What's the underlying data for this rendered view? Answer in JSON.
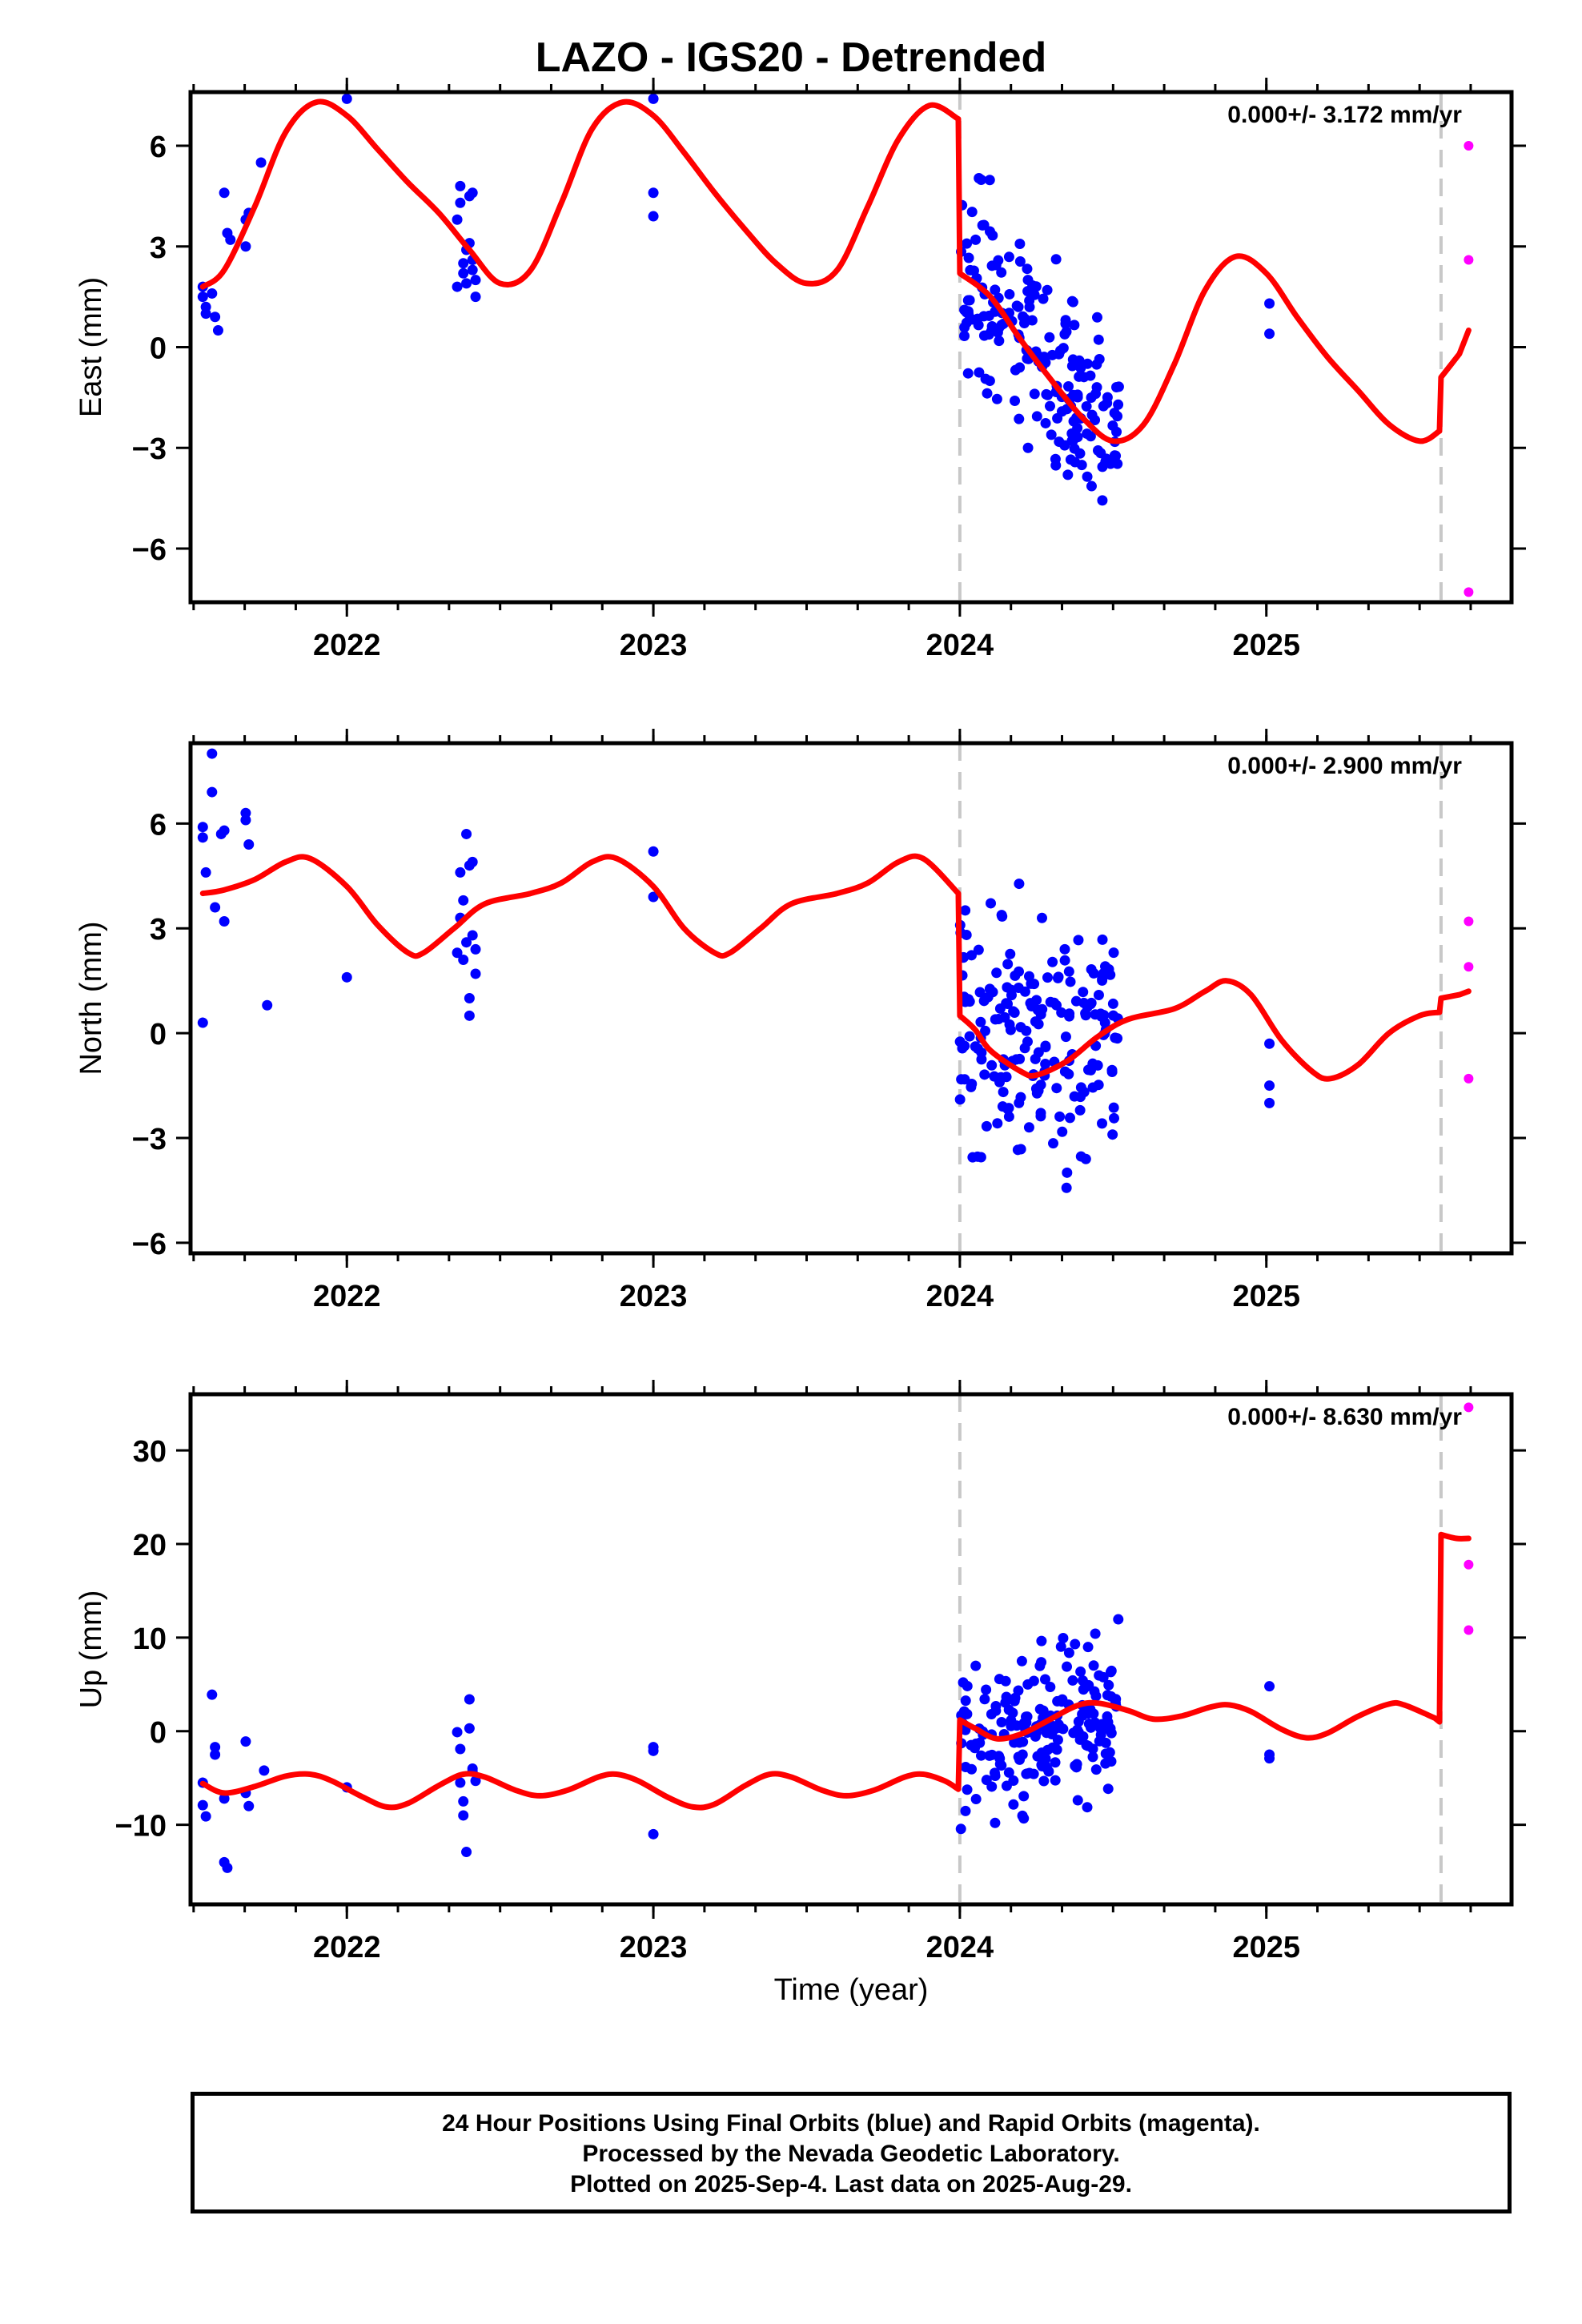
{
  "title": "LAZO - IGS20 - Detrended",
  "xlabel": "Time (year)",
  "footer": [
    "24 Hour Positions Using Final Orbits (blue) and Rapid Orbits (magenta).",
    "Processed by the Nevada Geodetic Laboratory.",
    "Plotted on 2025-Sep-4. Last data on 2025-Aug-29."
  ],
  "colors": {
    "final": "#0000ff",
    "rapid": "#ff00ff",
    "model": "#ff0000",
    "steps": "#c8c8c8"
  },
  "chart_data": [
    {
      "type": "scatter",
      "ylabel": "East (mm)",
      "rate": "0.000+/- 3.172 mm/yr",
      "xlim": [
        2021.49,
        2025.8
      ],
      "ylim": [
        -7.6,
        7.6
      ],
      "xticks": [
        2022,
        2023,
        2024,
        2025
      ],
      "yticks": [
        -6,
        -3,
        0,
        3,
        6
      ],
      "steps": [
        2024.0,
        2025.57
      ],
      "final": [
        [
          2021.53,
          1.8
        ],
        [
          2021.53,
          1.5
        ],
        [
          2021.54,
          1.2
        ],
        [
          2021.54,
          1.0
        ],
        [
          2021.56,
          1.6
        ],
        [
          2021.57,
          0.9
        ],
        [
          2021.58,
          0.5
        ],
        [
          2021.6,
          4.6
        ],
        [
          2021.61,
          3.4
        ],
        [
          2021.62,
          3.2
        ],
        [
          2021.67,
          3.0
        ],
        [
          2021.67,
          3.8
        ],
        [
          2021.68,
          4.0
        ],
        [
          2021.72,
          5.5
        ],
        [
          2022.0,
          7.4
        ],
        [
          2022.36,
          1.8
        ],
        [
          2022.36,
          3.8
        ],
        [
          2022.37,
          4.8
        ],
        [
          2022.37,
          4.3
        ],
        [
          2022.38,
          2.5
        ],
        [
          2022.38,
          2.2
        ],
        [
          2022.39,
          1.9
        ],
        [
          2022.39,
          2.9
        ],
        [
          2022.4,
          4.5
        ],
        [
          2022.4,
          3.1
        ],
        [
          2022.41,
          2.6
        ],
        [
          2022.41,
          2.3
        ],
        [
          2022.41,
          4.6
        ],
        [
          2022.42,
          1.5
        ],
        [
          2022.42,
          2.0
        ],
        [
          2023.0,
          7.4
        ],
        [
          2023.0,
          4.6
        ],
        [
          2023.0,
          3.9
        ],
        [
          2025.01,
          1.3
        ],
        [
          2025.01,
          0.4
        ]
      ],
      "rapid": [
        [
          2025.66,
          6.0
        ],
        [
          2025.66,
          2.6
        ],
        [
          2025.66,
          -7.3
        ]
      ],
      "final_cluster": {
        "x_start": 2024.0,
        "x_end": 2024.52,
        "count": 195,
        "trend_start": 2.6,
        "trend_end": -3.0,
        "spread": 1.6
      },
      "model": [
        [
          2021.53,
          1.8
        ],
        [
          2021.6,
          2.3
        ],
        [
          2021.7,
          4.2
        ],
        [
          2021.8,
          6.4
        ],
        [
          2021.9,
          7.3
        ],
        [
          2022.0,
          6.9
        ],
        [
          2022.1,
          5.9
        ],
        [
          2022.2,
          4.9
        ],
        [
          2022.3,
          4.0
        ],
        [
          2022.4,
          2.9
        ],
        [
          2022.5,
          1.9
        ],
        [
          2022.6,
          2.3
        ],
        [
          2022.7,
          4.3
        ],
        [
          2022.8,
          6.5
        ],
        [
          2022.9,
          7.3
        ],
        [
          2023.0,
          6.9
        ],
        [
          2023.1,
          5.8
        ],
        [
          2023.2,
          4.6
        ],
        [
          2023.3,
          3.5
        ],
        [
          2023.4,
          2.5
        ],
        [
          2023.5,
          1.9
        ],
        [
          2023.6,
          2.3
        ],
        [
          2023.7,
          4.2
        ],
        [
          2023.8,
          6.2
        ],
        [
          2023.9,
          7.2
        ],
        [
          2023.995,
          6.8
        ],
        [
          2024.0,
          2.2
        ],
        [
          2024.1,
          1.5
        ],
        [
          2024.2,
          0.2
        ],
        [
          2024.3,
          -1.0
        ],
        [
          2024.4,
          -2.1
        ],
        [
          2024.5,
          -2.8
        ],
        [
          2024.6,
          -2.3
        ],
        [
          2024.7,
          -0.5
        ],
        [
          2024.8,
          1.7
        ],
        [
          2024.9,
          2.7
        ],
        [
          2025.0,
          2.2
        ],
        [
          2025.1,
          0.9
        ],
        [
          2025.2,
          -0.3
        ],
        [
          2025.3,
          -1.3
        ],
        [
          2025.4,
          -2.3
        ],
        [
          2025.5,
          -2.8
        ],
        [
          2025.565,
          -2.5
        ],
        [
          2025.57,
          -0.9
        ],
        [
          2025.63,
          -0.2
        ],
        [
          2025.66,
          0.5
        ]
      ]
    },
    {
      "type": "scatter",
      "ylabel": "North (mm)",
      "rate": "0.000+/- 2.900 mm/yr",
      "xlim": [
        2021.49,
        2025.8
      ],
      "ylim": [
        -6.3,
        8.3
      ],
      "xticks": [
        2022,
        2023,
        2024,
        2025
      ],
      "yticks": [
        -6,
        -3,
        0,
        3,
        6
      ],
      "steps": [
        2024.0,
        2025.57
      ],
      "final": [
        [
          2021.53,
          0.3
        ],
        [
          2021.53,
          5.9
        ],
        [
          2021.53,
          5.6
        ],
        [
          2021.54,
          4.6
        ],
        [
          2021.56,
          8.0
        ],
        [
          2021.56,
          6.9
        ],
        [
          2021.57,
          3.6
        ],
        [
          2021.59,
          5.7
        ],
        [
          2021.6,
          5.8
        ],
        [
          2021.6,
          3.2
        ],
        [
          2021.67,
          6.3
        ],
        [
          2021.67,
          6.1
        ],
        [
          2021.68,
          5.4
        ],
        [
          2021.74,
          0.8
        ],
        [
          2022.0,
          1.6
        ],
        [
          2022.36,
          2.3
        ],
        [
          2022.37,
          3.3
        ],
        [
          2022.37,
          4.6
        ],
        [
          2022.38,
          2.1
        ],
        [
          2022.38,
          3.8
        ],
        [
          2022.39,
          2.6
        ],
        [
          2022.39,
          5.7
        ],
        [
          2022.4,
          1.0
        ],
        [
          2022.4,
          0.5
        ],
        [
          2022.4,
          4.8
        ],
        [
          2022.41,
          4.9
        ],
        [
          2022.41,
          2.8
        ],
        [
          2022.42,
          1.7
        ],
        [
          2022.42,
          2.4
        ],
        [
          2023.0,
          5.2
        ],
        [
          2023.0,
          3.9
        ],
        [
          2025.01,
          -0.3
        ],
        [
          2025.01,
          -1.5
        ],
        [
          2025.01,
          -2.0
        ]
      ],
      "rapid": [
        [
          2025.66,
          3.2
        ],
        [
          2025.66,
          1.9
        ],
        [
          2025.66,
          -1.3
        ]
      ],
      "final_cluster": {
        "x_start": 2024.0,
        "x_end": 2024.52,
        "count": 195,
        "trend_start": 0.0,
        "trend_end": 0.0,
        "spread": 1.9
      },
      "model": [
        [
          2021.53,
          4.0
        ],
        [
          2021.6,
          4.1
        ],
        [
          2021.7,
          4.4
        ],
        [
          2021.8,
          4.9
        ],
        [
          2021.88,
          5.0
        ],
        [
          2022.0,
          4.2
        ],
        [
          2022.1,
          3.1
        ],
        [
          2022.2,
          2.3
        ],
        [
          2022.25,
          2.3
        ],
        [
          2022.35,
          3.0
        ],
        [
          2022.45,
          3.7
        ],
        [
          2022.6,
          4.0
        ],
        [
          2022.7,
          4.3
        ],
        [
          2022.8,
          4.9
        ],
        [
          2022.88,
          5.0
        ],
        [
          2023.0,
          4.2
        ],
        [
          2023.1,
          3.0
        ],
        [
          2023.2,
          2.3
        ],
        [
          2023.25,
          2.3
        ],
        [
          2023.35,
          3.0
        ],
        [
          2023.45,
          3.7
        ],
        [
          2023.6,
          4.0
        ],
        [
          2023.7,
          4.3
        ],
        [
          2023.8,
          4.9
        ],
        [
          2023.88,
          5.0
        ],
        [
          2023.995,
          4.0
        ],
        [
          2024.0,
          0.5
        ],
        [
          2024.05,
          0.1
        ],
        [
          2024.1,
          -0.5
        ],
        [
          2024.2,
          -1.1
        ],
        [
          2024.25,
          -1.2
        ],
        [
          2024.35,
          -0.8
        ],
        [
          2024.45,
          -0.1
        ],
        [
          2024.55,
          0.4
        ],
        [
          2024.7,
          0.7
        ],
        [
          2024.8,
          1.2
        ],
        [
          2024.87,
          1.5
        ],
        [
          2024.95,
          1.1
        ],
        [
          2025.05,
          -0.2
        ],
        [
          2025.15,
          -1.1
        ],
        [
          2025.21,
          -1.3
        ],
        [
          2025.3,
          -0.9
        ],
        [
          2025.4,
          0.0
        ],
        [
          2025.5,
          0.5
        ],
        [
          2025.565,
          0.6
        ],
        [
          2025.57,
          1.0
        ],
        [
          2025.63,
          1.1
        ],
        [
          2025.66,
          1.2
        ]
      ]
    },
    {
      "type": "scatter",
      "ylabel": "Up (mm)",
      "rate": "0.000+/- 8.630 mm/yr",
      "xlim": [
        2021.49,
        2025.8
      ],
      "ylim": [
        -18.5,
        36
      ],
      "xticks": [
        2022,
        2023,
        2024,
        2025
      ],
      "yticks": [
        -10,
        0,
        10,
        20,
        30
      ],
      "steps": [
        2024.0,
        2025.57
      ],
      "final": [
        [
          2021.53,
          -5.5
        ],
        [
          2021.53,
          -7.9
        ],
        [
          2021.54,
          -9.1
        ],
        [
          2021.56,
          3.9
        ],
        [
          2021.57,
          -1.7
        ],
        [
          2021.57,
          -2.5
        ],
        [
          2021.6,
          -7.2
        ],
        [
          2021.6,
          -14.0
        ],
        [
          2021.61,
          -14.6
        ],
        [
          2021.67,
          -1.1
        ],
        [
          2021.67,
          -6.6
        ],
        [
          2021.68,
          -8.0
        ],
        [
          2021.73,
          -4.2
        ],
        [
          2022.0,
          -6.0
        ],
        [
          2022.36,
          -0.1
        ],
        [
          2022.37,
          -1.9
        ],
        [
          2022.37,
          -5.5
        ],
        [
          2022.38,
          -7.5
        ],
        [
          2022.38,
          -9.0
        ],
        [
          2022.39,
          -12.9
        ],
        [
          2022.4,
          0.3
        ],
        [
          2022.4,
          3.4
        ],
        [
          2022.41,
          -4.0
        ],
        [
          2022.41,
          -4.3
        ],
        [
          2022.42,
          -5.3
        ],
        [
          2023.0,
          -1.7
        ],
        [
          2023.0,
          -2.1
        ],
        [
          2023.0,
          -11.0
        ],
        [
          2025.01,
          4.8
        ],
        [
          2025.01,
          -2.5
        ],
        [
          2025.01,
          -2.9
        ]
      ],
      "rapid": [
        [
          2025.66,
          34.6
        ],
        [
          2025.66,
          17.8
        ],
        [
          2025.66,
          10.8
        ]
      ],
      "final_cluster": {
        "x_start": 2024.0,
        "x_end": 2024.52,
        "count": 195,
        "trend_start": -2.0,
        "trend_end": 3.0,
        "spread": 4.6
      },
      "model": [
        [
          2021.53,
          -5.6
        ],
        [
          2021.6,
          -6.6
        ],
        [
          2021.7,
          -5.9
        ],
        [
          2021.8,
          -4.8
        ],
        [
          2021.88,
          -4.6
        ],
        [
          2021.95,
          -5.3
        ],
        [
          2022.05,
          -7.0
        ],
        [
          2022.13,
          -8.1
        ],
        [
          2022.2,
          -7.7
        ],
        [
          2022.3,
          -5.8
        ],
        [
          2022.38,
          -4.6
        ],
        [
          2022.45,
          -4.9
        ],
        [
          2022.55,
          -6.3
        ],
        [
          2022.63,
          -6.9
        ],
        [
          2022.72,
          -6.3
        ],
        [
          2022.82,
          -4.9
        ],
        [
          2022.88,
          -4.6
        ],
        [
          2022.95,
          -5.3
        ],
        [
          2023.05,
          -7.1
        ],
        [
          2023.13,
          -8.1
        ],
        [
          2023.2,
          -7.8
        ],
        [
          2023.3,
          -5.8
        ],
        [
          2023.38,
          -4.6
        ],
        [
          2023.45,
          -4.9
        ],
        [
          2023.55,
          -6.3
        ],
        [
          2023.63,
          -6.9
        ],
        [
          2023.72,
          -6.3
        ],
        [
          2023.82,
          -4.9
        ],
        [
          2023.88,
          -4.6
        ],
        [
          2023.95,
          -5.3
        ],
        [
          2023.995,
          -6.2
        ],
        [
          2024.0,
          1.2
        ],
        [
          2024.05,
          0.3
        ],
        [
          2024.12,
          -0.8
        ],
        [
          2024.2,
          -0.3
        ],
        [
          2024.28,
          1.0
        ],
        [
          2024.38,
          2.7
        ],
        [
          2024.45,
          3.0
        ],
        [
          2024.55,
          2.2
        ],
        [
          2024.63,
          1.3
        ],
        [
          2024.72,
          1.6
        ],
        [
          2024.82,
          2.6
        ],
        [
          2024.88,
          2.8
        ],
        [
          2024.95,
          2.1
        ],
        [
          2025.05,
          0.2
        ],
        [
          2025.13,
          -0.7
        ],
        [
          2025.2,
          -0.2
        ],
        [
          2025.3,
          1.6
        ],
        [
          2025.4,
          2.9
        ],
        [
          2025.45,
          2.8
        ],
        [
          2025.55,
          1.4
        ],
        [
          2025.565,
          1.0
        ],
        [
          2025.57,
          21.0
        ],
        [
          2025.62,
          20.6
        ],
        [
          2025.66,
          20.6
        ]
      ]
    }
  ]
}
